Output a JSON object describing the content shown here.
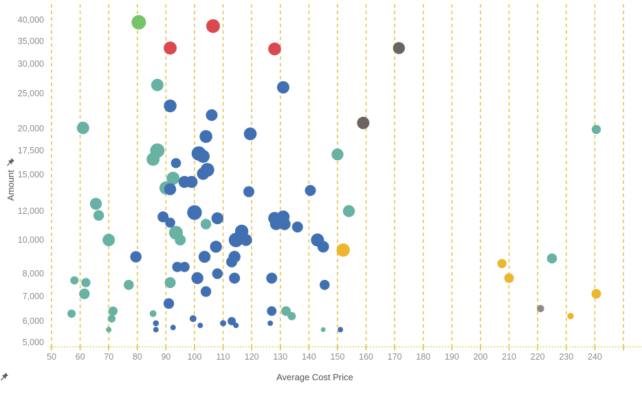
{
  "chart_data": {
    "type": "scatter",
    "title": "",
    "xlabel": "Average Cost Price",
    "ylabel": "Amount",
    "x_axis_pinned": true,
    "y_axis_pinned": true,
    "x_ticks": [
      50,
      60,
      70,
      80,
      90,
      100,
      110,
      120,
      130,
      140,
      150,
      160,
      170,
      180,
      190,
      200,
      210,
      220,
      230,
      240
    ],
    "x_gridlines": [
      50,
      60,
      70,
      80,
      90,
      100,
      110,
      120,
      130,
      140,
      150,
      160,
      170,
      180,
      190,
      200,
      210,
      220,
      230,
      240,
      250
    ],
    "x_range": [
      49,
      256
    ],
    "y_scale": "log",
    "y_ticks": [
      5000,
      6000,
      7000,
      8000,
      10000,
      12000,
      15000,
      17500,
      20000,
      25000,
      30000,
      35000,
      40000
    ],
    "y_range": [
      4850,
      43500
    ],
    "grid": "vertical-dashed",
    "legend": "none",
    "point_format": [
      "x",
      "y",
      "radius_px",
      "color"
    ],
    "points": [
      [
        80.5,
        39500,
        10.5,
        "green"
      ],
      [
        106.5,
        38600,
        10,
        "red"
      ],
      [
        91.5,
        33500,
        9.5,
        "red"
      ],
      [
        128,
        33300,
        9.3,
        "red"
      ],
      [
        171.5,
        33500,
        8.7,
        "gray"
      ],
      [
        87,
        26400,
        9,
        "teal"
      ],
      [
        131,
        26000,
        9,
        "blue"
      ],
      [
        91.5,
        23200,
        9.3,
        "blue"
      ],
      [
        106,
        21900,
        8.5,
        "blue"
      ],
      [
        159,
        20800,
        9,
        "gray"
      ],
      [
        61,
        20100,
        9,
        "teal"
      ],
      [
        240.5,
        19900,
        6.7,
        "teal"
      ],
      [
        119.5,
        19400,
        9.3,
        "blue"
      ],
      [
        104,
        19100,
        9.3,
        "blue"
      ],
      [
        87,
        17500,
        10.5,
        "teal"
      ],
      [
        101.5,
        17200,
        10.5,
        "blue"
      ],
      [
        150,
        17100,
        8.7,
        "teal"
      ],
      [
        103,
        16900,
        9.5,
        "blue"
      ],
      [
        85.5,
        16600,
        9.5,
        "teal"
      ],
      [
        93.5,
        16200,
        7.3,
        "blue"
      ],
      [
        104.5,
        15500,
        10,
        "blue"
      ],
      [
        103,
        15100,
        9,
        "blue"
      ],
      [
        92.5,
        14700,
        9.5,
        "teal"
      ],
      [
        96.5,
        14400,
        8.7,
        "blue"
      ],
      [
        99,
        14400,
        8.7,
        "blue"
      ],
      [
        90,
        13900,
        9.5,
        "teal"
      ],
      [
        91.5,
        13800,
        8.7,
        "blue"
      ],
      [
        119,
        13600,
        8,
        "blue"
      ],
      [
        140.5,
        13700,
        8,
        "blue"
      ],
      [
        65.5,
        12600,
        8.7,
        "teal"
      ],
      [
        154,
        12000,
        8.7,
        "teal"
      ],
      [
        100,
        11900,
        10.7,
        "blue"
      ],
      [
        66.5,
        11700,
        7.7,
        "teal"
      ],
      [
        131,
        11600,
        9.3,
        "blue"
      ],
      [
        89,
        11600,
        8,
        "blue"
      ],
      [
        128,
        11500,
        9.3,
        "blue"
      ],
      [
        108,
        11500,
        8.7,
        "blue"
      ],
      [
        91.5,
        11200,
        7.3,
        "blue"
      ],
      [
        128.5,
        11100,
        8.7,
        "blue"
      ],
      [
        131.5,
        11100,
        8.7,
        "blue"
      ],
      [
        104,
        11100,
        7.7,
        "teal"
      ],
      [
        136,
        10900,
        8,
        "blue"
      ],
      [
        116.5,
        10600,
        9.7,
        "blue"
      ],
      [
        93.5,
        10500,
        10,
        "teal"
      ],
      [
        114.5,
        10000,
        10.5,
        "blue"
      ],
      [
        118,
        10000,
        8.7,
        "blue"
      ],
      [
        70,
        10000,
        9,
        "teal"
      ],
      [
        143,
        10000,
        9.5,
        "blue"
      ],
      [
        95,
        10000,
        8,
        "teal"
      ],
      [
        145,
        9600,
        8.5,
        "blue"
      ],
      [
        107.5,
        9600,
        8.7,
        "blue"
      ],
      [
        152,
        9400,
        9.7,
        "yellow"
      ],
      [
        79.5,
        9000,
        8.3,
        "blue"
      ],
      [
        114,
        9000,
        8.7,
        "blue"
      ],
      [
        103.5,
        9000,
        8.7,
        "blue"
      ],
      [
        225,
        8900,
        7.3,
        "teal"
      ],
      [
        113,
        8700,
        8,
        "blue"
      ],
      [
        207.5,
        8600,
        6.7,
        "yellow"
      ],
      [
        94,
        8400,
        7.5,
        "blue"
      ],
      [
        96.5,
        8400,
        7.5,
        "blue"
      ],
      [
        108,
        8000,
        7.7,
        "blue"
      ],
      [
        101,
        7800,
        8.7,
        "blue"
      ],
      [
        114,
        7800,
        8,
        "blue"
      ],
      [
        127,
        7800,
        8,
        "blue"
      ],
      [
        210,
        7800,
        7,
        "yellow"
      ],
      [
        58,
        7700,
        6,
        "teal"
      ],
      [
        62,
        7600,
        6.7,
        "teal"
      ],
      [
        91.5,
        7600,
        8,
        "teal"
      ],
      [
        77,
        7500,
        7.3,
        "teal"
      ],
      [
        145.5,
        7500,
        7.3,
        "blue"
      ],
      [
        104,
        7200,
        7.7,
        "blue"
      ],
      [
        61.5,
        7100,
        7.7,
        "teal"
      ],
      [
        240.5,
        7100,
        7,
        "yellow"
      ],
      [
        91,
        6700,
        7.7,
        "blue"
      ],
      [
        221,
        6500,
        5.3,
        "gray-light"
      ],
      [
        71.5,
        6400,
        6.7,
        "teal"
      ],
      [
        127,
        6400,
        7,
        "blue"
      ],
      [
        132,
        6400,
        7,
        "teal"
      ],
      [
        57,
        6300,
        6,
        "teal"
      ],
      [
        85.5,
        6300,
        5,
        "teal"
      ],
      [
        231.5,
        6200,
        4.7,
        "yellow"
      ],
      [
        134,
        6200,
        6,
        "teal"
      ],
      [
        71,
        6100,
        5.7,
        "teal"
      ],
      [
        99.5,
        6100,
        5,
        "blue"
      ],
      [
        113,
        6000,
        6,
        "blue"
      ],
      [
        86.5,
        5900,
        4.3,
        "blue"
      ],
      [
        110,
        5900,
        4.5,
        "blue"
      ],
      [
        126.5,
        5900,
        4,
        "blue"
      ],
      [
        102,
        5800,
        4,
        "blue"
      ],
      [
        114.5,
        5800,
        4,
        "blue"
      ],
      [
        92.5,
        5700,
        4,
        "blue"
      ],
      [
        70,
        5600,
        4,
        "teal"
      ],
      [
        86.5,
        5600,
        4,
        "blue"
      ],
      [
        145,
        5600,
        3.5,
        "teal"
      ],
      [
        151,
        5600,
        4,
        "blue"
      ]
    ]
  },
  "colors": {
    "blue": "#4170b2",
    "teal": "#68b2a3",
    "green": "#76c36a",
    "red": "#da4950",
    "gray": "#6b6460",
    "gray-light": "#908c85",
    "yellow": "#ecb72d",
    "gridline": "#e3c44c",
    "axis_dots": "#ddbf45",
    "tick_text": "#8c8c8c",
    "title_text": "#4f4f4f"
  }
}
